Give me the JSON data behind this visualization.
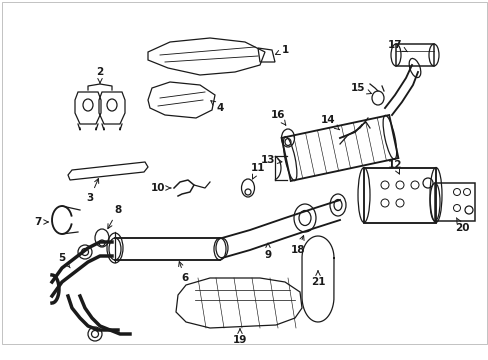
{
  "bg_color": "#ffffff",
  "lc": "#1a1a1a",
  "fig_w": 4.89,
  "fig_h": 3.6,
  "dpi": 100,
  "border_color": "#cccccc"
}
